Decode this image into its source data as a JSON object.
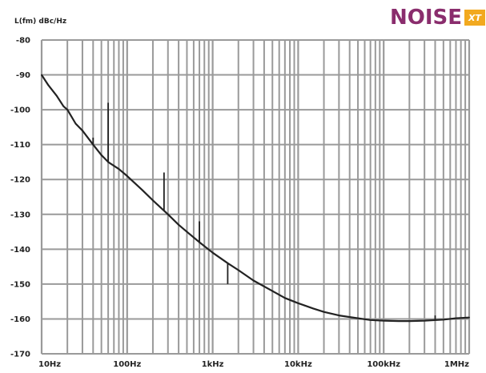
{
  "brand": {
    "name": "NOISE",
    "badge": "XT",
    "name_color": "#8a2d6d",
    "badge_color": "#f2a91f"
  },
  "chart_data": {
    "type": "line",
    "ylabel": "L(fm) dBc/Hz",
    "xscale": "log",
    "xlim": [
      10,
      1000000
    ],
    "ylim": [
      -170,
      -80
    ],
    "grid": true,
    "y_ticks": [
      -80,
      -90,
      -100,
      -110,
      -120,
      -130,
      -140,
      -150,
      -160,
      -170
    ],
    "y_tick_labels": [
      "-80",
      "-90",
      "-100",
      "-110",
      "-120",
      "-130",
      "-140",
      "-150",
      "-160",
      "-170"
    ],
    "x_ticks": [
      10,
      100,
      1000,
      10000,
      100000,
      1000000
    ],
    "x_tick_labels": [
      "10Hz",
      "100Hz",
      "1kHz",
      "10kHz",
      "100kHz",
      "1MHz"
    ],
    "series_color": "#222222",
    "series": [
      {
        "x": [
          10,
          12,
          15,
          18,
          20,
          25,
          30,
          40,
          50,
          60,
          80,
          100,
          150,
          200,
          300,
          400,
          500,
          700,
          1000,
          1500,
          2000,
          3000,
          5000,
          7000,
          10000,
          15000,
          20000,
          30000,
          50000,
          70000,
          100000,
          150000,
          200000,
          300000,
          500000,
          700000,
          1000000
        ],
        "y": [
          -90,
          -93,
          -96,
          -99,
          -100,
          -104,
          -106,
          -110,
          -113,
          -115,
          -117,
          -119,
          -123,
          -126,
          -130,
          -133,
          -135,
          -138,
          -141,
          -144,
          -146,
          -149,
          -152,
          -154,
          -155.5,
          -157,
          -158,
          -159,
          -159.8,
          -160.3,
          -160.5,
          -160.6,
          -160.6,
          -160.5,
          -160.2,
          -159.8,
          -159.6
        ]
      }
    ],
    "spurs": [
      {
        "x": 60,
        "y": -98
      },
      {
        "x": 40,
        "y": -108
      },
      {
        "x": 270,
        "y": -118
      },
      {
        "x": 700,
        "y": -132
      },
      {
        "x": 1500,
        "y": -150
      },
      {
        "x": 3000,
        "y": -149
      },
      {
        "x": 400000,
        "y": -159
      }
    ]
  }
}
